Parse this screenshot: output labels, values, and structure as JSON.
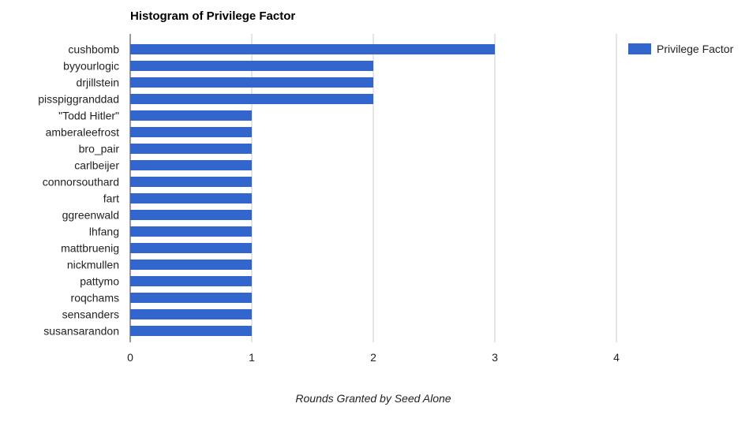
{
  "chart_data": {
    "type": "bar",
    "orientation": "horizontal",
    "title": "Histogram of Privilege Factor",
    "xlabel": "Rounds Granted by Seed Alone",
    "ylabel": "",
    "categories": [
      "cushbomb",
      "byyourlogic",
      "drjillstein",
      "pisspiggranddad",
      "\"Todd Hitler\"",
      "amberaleefrost",
      "bro_pair",
      "carlbeijer",
      "connorsouthard",
      "fart",
      "ggreenwald",
      "lhfang",
      "mattbruenig",
      "nickmullen",
      "pattymo",
      "roqchams",
      "sensanders",
      "susansarandon"
    ],
    "series": [
      {
        "name": "Privilege Factor",
        "color": "#3366cc",
        "values": [
          3,
          2,
          2,
          2,
          1,
          1,
          1,
          1,
          1,
          1,
          1,
          1,
          1,
          1,
          1,
          1,
          1,
          1
        ]
      }
    ],
    "xlim": [
      0,
      4
    ],
    "xticks": [
      "0",
      "1",
      "2",
      "3",
      "4"
    ],
    "grid": "vertical",
    "legend_position": "top-right"
  }
}
